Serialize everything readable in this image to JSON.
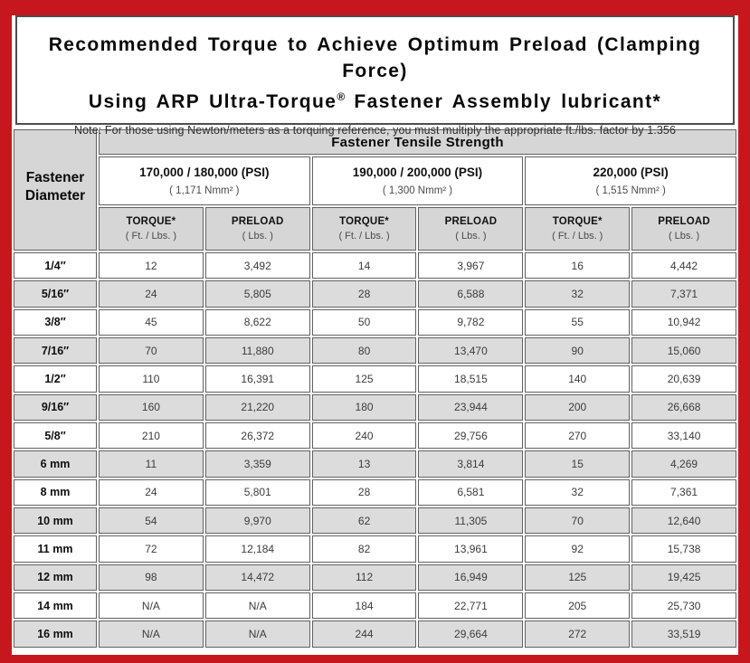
{
  "page": {
    "frame_color": "#c6171e",
    "header_gray": "#d6d6d6",
    "row_shade_gray": "#dcdcdc"
  },
  "header": {
    "title_line1": "Recommended Torque to Achieve Optimum Preload (Clamping Force)",
    "title_line2_pre": "Using ARP Ultra-Torque",
    "registered_mark": "®",
    "title_line2_post": " Fastener Assembly lubricant*",
    "note": "Note: For those using Newton/meters as a torquing reference, you must multiply the appropriate ft./lbs. factor by 1.356"
  },
  "table": {
    "corner_header_line1": "Fastener",
    "corner_header_line2": "Diameter",
    "tensile_strength_header": "Fastener Tensile Strength",
    "strength_groups": [
      {
        "psi": "170,000 / 180,000 (PSI)",
        "nmm": "( 1,171 Nmm² )"
      },
      {
        "psi": "190,000 / 200,000 (PSI)",
        "nmm": "( 1,300 Nmm² )"
      },
      {
        "psi": "220,000 (PSI)",
        "nmm": "( 1,515 Nmm² )"
      }
    ],
    "sub_headers": {
      "torque_label": "TORQUE*",
      "torque_unit": "( Ft. / Lbs. )",
      "preload_label": "PRELOAD",
      "preload_unit": "( Lbs. )"
    },
    "rows": [
      {
        "diameter": "1/4″",
        "values": [
          "12",
          "3,492",
          "14",
          "3,967",
          "16",
          "4,442"
        ]
      },
      {
        "diameter": "5/16″",
        "values": [
          "24",
          "5,805",
          "28",
          "6,588",
          "32",
          "7,371"
        ]
      },
      {
        "diameter": "3/8″",
        "values": [
          "45",
          "8,622",
          "50",
          "9,782",
          "55",
          "10,942"
        ]
      },
      {
        "diameter": "7/16″",
        "values": [
          "70",
          "11,880",
          "80",
          "13,470",
          "90",
          "15,060"
        ]
      },
      {
        "diameter": "1/2″",
        "values": [
          "110",
          "16,391",
          "125",
          "18,515",
          "140",
          "20,639"
        ]
      },
      {
        "diameter": "9/16″",
        "values": [
          "160",
          "21,220",
          "180",
          "23,944",
          "200",
          "26,668"
        ]
      },
      {
        "diameter": "5/8″",
        "values": [
          "210",
          "26,372",
          "240",
          "29,756",
          "270",
          "33,140"
        ]
      },
      {
        "diameter": "6 mm",
        "values": [
          "11",
          "3,359",
          "13",
          "3,814",
          "15",
          "4,269"
        ]
      },
      {
        "diameter": "8 mm",
        "values": [
          "24",
          "5,801",
          "28",
          "6,581",
          "32",
          "7,361"
        ]
      },
      {
        "diameter": "10 mm",
        "values": [
          "54",
          "9,970",
          "62",
          "11,305",
          "70",
          "12,640"
        ]
      },
      {
        "diameter": "11 mm",
        "values": [
          "72",
          "12,184",
          "82",
          "13,961",
          "92",
          "15,738"
        ]
      },
      {
        "diameter": "12 mm",
        "values": [
          "98",
          "14,472",
          "112",
          "16,949",
          "125",
          "19,425"
        ]
      },
      {
        "diameter": "14 mm",
        "values": [
          "N/A",
          "N/A",
          "184",
          "22,771",
          "205",
          "25,730"
        ]
      },
      {
        "diameter": "16 mm",
        "values": [
          "N/A",
          "N/A",
          "244",
          "29,664",
          "272",
          "33,519"
        ]
      }
    ]
  }
}
